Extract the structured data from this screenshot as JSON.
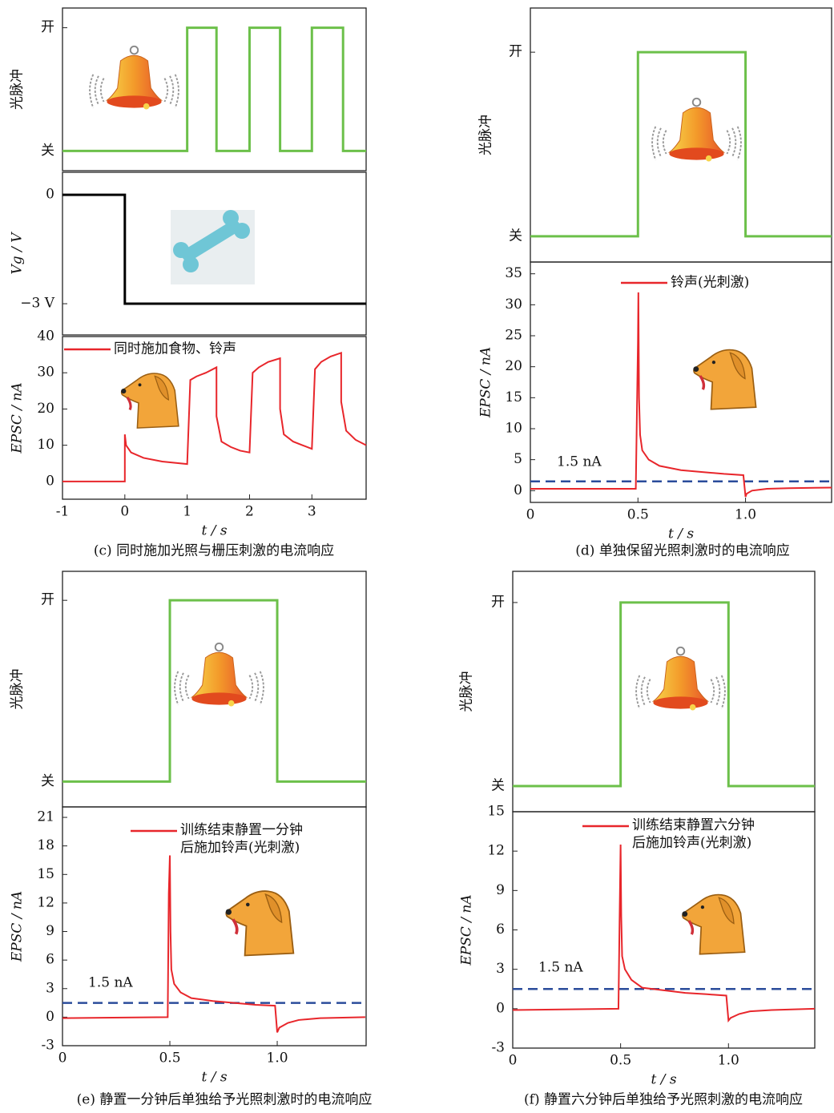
{
  "chart_data": [
    {
      "type": "line",
      "ylabel": "光脉冲",
      "xlim": [
        -1,
        3.87
      ],
      "ylim": [
        -0.16,
        1.16
      ],
      "yticks": [
        {
          "value": 1,
          "label": "开"
        },
        {
          "value": 0,
          "label": "关"
        }
      ],
      "x": [
        -1,
        1,
        1,
        1.47,
        1.47,
        2,
        2,
        2.49,
        2.49,
        3,
        3,
        3.5,
        3.5,
        3.87
      ],
      "series": [
        {
          "color": "#6cc04a",
          "values": [
            0,
            0,
            1,
            1,
            0,
            0,
            1,
            1,
            0,
            0,
            1,
            1,
            0,
            0
          ]
        }
      ]
    },
    {
      "type": "line",
      "ylabel": "Vg / V",
      "xlim": [
        -1,
        3.87
      ],
      "ylim": [
        -3.86,
        0.62
      ],
      "yticks": [
        0,
        {
          "value": -3,
          "label": "−3 V"
        }
      ],
      "x": [
        -1,
        0,
        0,
        3.87
      ],
      "series": [
        {
          "color": "#000000",
          "values": [
            0,
            0,
            -3,
            -3
          ]
        }
      ]
    },
    {
      "type": "line",
      "ylabel": "EPSC / nA",
      "xlabel": "t / s",
      "caption": "(c) 同时施加光照与栅压刺激的电流响应",
      "xlim": [
        -1,
        3.87
      ],
      "ylim": [
        -4.9,
        40
      ],
      "xticks": [
        -1,
        0,
        1,
        2,
        3
      ],
      "yticks": [
        0,
        10,
        20,
        30,
        40
      ],
      "x": [
        -1,
        0,
        0,
        0.02,
        0.1,
        0.3,
        0.6,
        1.0,
        1.0,
        1.05,
        1.15,
        1.3,
        1.47,
        1.47,
        1.55,
        1.7,
        1.85,
        2.0,
        2.0,
        2.05,
        2.15,
        2.3,
        2.49,
        2.49,
        2.55,
        2.7,
        2.85,
        3.0,
        3.0,
        3.05,
        3.15,
        3.3,
        3.47,
        3.47,
        3.55,
        3.7,
        3.87
      ],
      "series": [
        {
          "name": "同时施加食物、铃声",
          "color": "#e8262b",
          "values": [
            0,
            0,
            13,
            10,
            8,
            6.5,
            5.5,
            4.8,
            4.8,
            28,
            29,
            30,
            31.5,
            18,
            11,
            9.5,
            8.5,
            8,
            8,
            30,
            31.5,
            33,
            34,
            20,
            13,
            11,
            10,
            9,
            9,
            31,
            33,
            34.5,
            35.5,
            22,
            14,
            11.5,
            10
          ]
        }
      ]
    },
    {
      "type": "line",
      "ylabel": "光脉冲",
      "xlim": [
        0,
        1.4
      ],
      "ylim": [
        -0.14,
        1.24
      ],
      "yticks": [
        {
          "value": 1,
          "label": "开"
        },
        {
          "value": 0,
          "label": "关"
        }
      ],
      "x": [
        0,
        0.5,
        0.5,
        1,
        1,
        1.4
      ],
      "series": [
        {
          "color": "#6cc04a",
          "values": [
            0,
            0,
            1,
            1,
            0,
            0
          ]
        }
      ]
    },
    {
      "type": "line",
      "ylabel": "EPSC / nA",
      "xlabel": "t / s",
      "caption": "(d) 单独保留光照刺激时的电流响应",
      "xlim": [
        0,
        1.4
      ],
      "ylim": [
        -1.9,
        36.9
      ],
      "xticks": [
        0,
        0.5,
        {
          "value": 1,
          "label": "1.0"
        }
      ],
      "yticks": [
        0,
        5,
        10,
        15,
        20,
        25,
        30,
        35
      ],
      "threshold": {
        "value": 1.5,
        "label": "1.5 nA",
        "color": "#2b4c9b"
      },
      "x": [
        0,
        0.49,
        0.5,
        0.502,
        0.505,
        0.51,
        0.52,
        0.55,
        0.6,
        0.7,
        0.8,
        0.9,
        0.99,
        1.0,
        1.005,
        1.03,
        1.1,
        1.2,
        1.4
      ],
      "series": [
        {
          "name": "铃声(光刺激)",
          "color": "#e8262b",
          "values": [
            0.3,
            0.3,
            24,
            32,
            15,
            9,
            6.5,
            5,
            4,
            3.3,
            3,
            2.7,
            2.5,
            -1,
            -0.5,
            0,
            0.3,
            0.4,
            0.5
          ]
        }
      ]
    },
    {
      "type": "line",
      "ylabel": "光脉冲",
      "xlim": [
        0,
        1.414
      ],
      "ylim": [
        -0.14,
        1.16
      ],
      "yticks": [
        {
          "value": 1,
          "label": "开"
        },
        {
          "value": 0,
          "label": "关"
        }
      ],
      "x": [
        0,
        0.5,
        0.5,
        1,
        1,
        1.414
      ],
      "series": [
        {
          "color": "#6cc04a",
          "values": [
            0,
            0,
            1,
            1,
            0,
            0
          ]
        }
      ]
    },
    {
      "type": "line",
      "ylabel": "EPSC / nA",
      "xlabel": "t / s",
      "caption": "(e) 静置一分钟后单独给予光照刺激时的电流响应",
      "xlim": [
        0,
        1.414
      ],
      "ylim": [
        -3,
        22.1
      ],
      "xticks": [
        0,
        0.5,
        {
          "value": 1,
          "label": "1.0"
        }
      ],
      "yticks": [
        -3,
        0,
        3,
        6,
        9,
        12,
        15,
        18,
        21
      ],
      "threshold": {
        "value": 1.5,
        "label": "1.5 nA",
        "color": "#2b4c9b"
      },
      "x": [
        0,
        0.49,
        0.495,
        0.5,
        0.503,
        0.507,
        0.52,
        0.55,
        0.6,
        0.7,
        0.8,
        0.9,
        0.99,
        1.0,
        1.01,
        1.05,
        1.1,
        1.2,
        1.41
      ],
      "series": [
        {
          "name": "训练结束静置一分钟后施加铃声(光刺激)",
          "color": "#e8262b",
          "values": [
            -0.1,
            0,
            13,
            17,
            9,
            5,
            3.5,
            2.6,
            2,
            1.7,
            1.5,
            1.3,
            1.2,
            -1.6,
            -1.1,
            -0.6,
            -0.3,
            -0.1,
            0
          ]
        }
      ]
    },
    {
      "type": "line",
      "ylabel": "光脉冲",
      "xlim": [
        0,
        1.4
      ],
      "ylim": [
        -0.14,
        1.17
      ],
      "yticks": [
        {
          "value": 1,
          "label": "开"
        },
        {
          "value": 0,
          "label": "关"
        }
      ],
      "x": [
        0,
        0.5,
        0.5,
        1,
        1,
        1.4
      ],
      "series": [
        {
          "color": "#6cc04a",
          "values": [
            0,
            0,
            1,
            1,
            0,
            0
          ]
        }
      ]
    },
    {
      "type": "line",
      "ylabel": "EPSC / nA",
      "xlabel": "t / s",
      "caption": "(f) 静置六分钟后单独给予光照刺激的电流响应",
      "xlim": [
        0,
        1.4
      ],
      "ylim": [
        -3,
        15
      ],
      "xticks": [
        0,
        0.5,
        {
          "value": 1,
          "label": "1.0"
        }
      ],
      "yticks": [
        -3,
        0,
        3,
        6,
        9,
        12,
        15
      ],
      "threshold": {
        "value": 1.5,
        "label": "1.5 nA",
        "color": "#2b4c9b"
      },
      "x": [
        0,
        0.49,
        0.495,
        0.5,
        0.503,
        0.507,
        0.52,
        0.55,
        0.6,
        0.7,
        0.8,
        0.9,
        0.99,
        1.0,
        1.01,
        1.05,
        1.1,
        1.2,
        1.4
      ],
      "series": [
        {
          "name": "训练结束静置六分钟后施加铃声(光刺激)",
          "color": "#e8262b",
          "values": [
            -0.1,
            0,
            6.5,
            12.5,
            7,
            4,
            3,
            2.2,
            1.6,
            1.4,
            1.2,
            1.1,
            1.0,
            -0.9,
            -0.7,
            -0.4,
            -0.2,
            -0.1,
            0
          ]
        }
      ]
    }
  ]
}
